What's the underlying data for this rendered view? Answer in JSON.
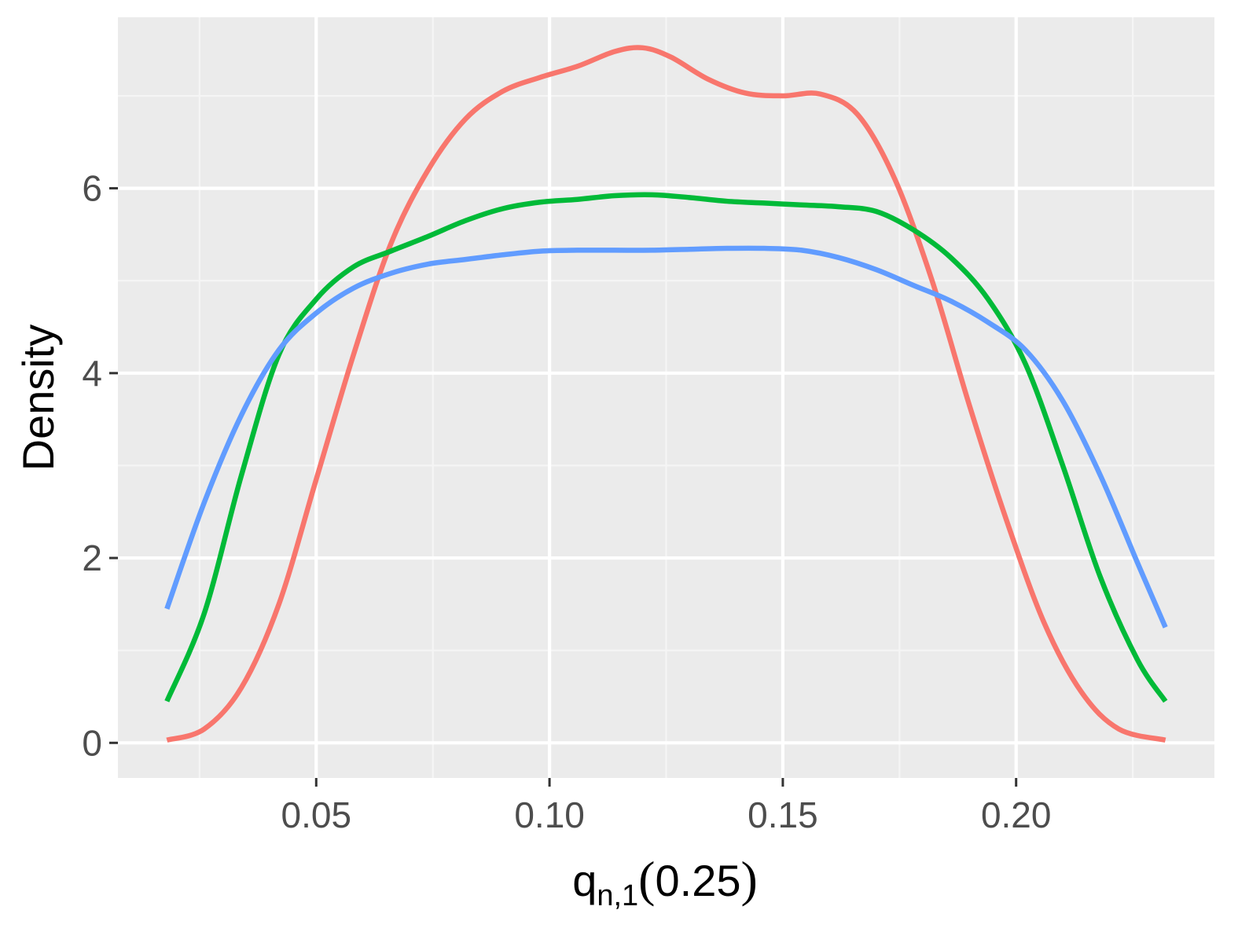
{
  "chart_data": {
    "type": "line",
    "title": "",
    "xlabel": {
      "main": "q",
      "subscript": "n,1",
      "paren_open": "(",
      "arg": "0.25",
      "paren_close": ")"
    },
    "ylabel": "Density",
    "xlim": [
      0.0075,
      0.2425
    ],
    "ylim": [
      -0.38,
      7.85
    ],
    "x_ticks": [
      0.05,
      0.1,
      0.15,
      0.2
    ],
    "x_tick_labels": [
      "0.05",
      "0.10",
      "0.15",
      "0.20"
    ],
    "y_ticks": [
      0,
      2,
      4,
      6
    ],
    "y_tick_labels": [
      "0",
      "2",
      "4",
      "6"
    ],
    "grid": true,
    "legend": "none",
    "series": [
      {
        "color": "#F8766D",
        "points": [
          [
            0.018,
            0.03
          ],
          [
            0.026,
            0.15
          ],
          [
            0.034,
            0.6
          ],
          [
            0.042,
            1.5
          ],
          [
            0.05,
            2.85
          ],
          [
            0.058,
            4.2
          ],
          [
            0.066,
            5.4
          ],
          [
            0.074,
            6.2
          ],
          [
            0.082,
            6.75
          ],
          [
            0.09,
            7.05
          ],
          [
            0.098,
            7.2
          ],
          [
            0.106,
            7.32
          ],
          [
            0.114,
            7.48
          ],
          [
            0.12,
            7.52
          ],
          [
            0.126,
            7.42
          ],
          [
            0.134,
            7.18
          ],
          [
            0.142,
            7.03
          ],
          [
            0.15,
            7.0
          ],
          [
            0.158,
            7.02
          ],
          [
            0.166,
            6.8
          ],
          [
            0.174,
            6.1
          ],
          [
            0.182,
            5.0
          ],
          [
            0.19,
            3.65
          ],
          [
            0.198,
            2.4
          ],
          [
            0.206,
            1.3
          ],
          [
            0.214,
            0.55
          ],
          [
            0.222,
            0.15
          ],
          [
            0.232,
            0.03
          ]
        ]
      },
      {
        "color": "#00BA38",
        "points": [
          [
            0.018,
            0.45
          ],
          [
            0.026,
            1.4
          ],
          [
            0.034,
            2.9
          ],
          [
            0.042,
            4.2
          ],
          [
            0.05,
            4.8
          ],
          [
            0.058,
            5.15
          ],
          [
            0.066,
            5.32
          ],
          [
            0.074,
            5.48
          ],
          [
            0.082,
            5.65
          ],
          [
            0.09,
            5.78
          ],
          [
            0.098,
            5.85
          ],
          [
            0.106,
            5.88
          ],
          [
            0.114,
            5.92
          ],
          [
            0.122,
            5.93
          ],
          [
            0.13,
            5.9
          ],
          [
            0.138,
            5.86
          ],
          [
            0.146,
            5.84
          ],
          [
            0.154,
            5.82
          ],
          [
            0.162,
            5.8
          ],
          [
            0.17,
            5.75
          ],
          [
            0.178,
            5.55
          ],
          [
            0.186,
            5.25
          ],
          [
            0.194,
            4.8
          ],
          [
            0.202,
            4.1
          ],
          [
            0.21,
            3.0
          ],
          [
            0.218,
            1.8
          ],
          [
            0.226,
            0.9
          ],
          [
            0.232,
            0.45
          ]
        ]
      },
      {
        "color": "#619CFF",
        "points": [
          [
            0.018,
            1.45
          ],
          [
            0.026,
            2.6
          ],
          [
            0.034,
            3.55
          ],
          [
            0.042,
            4.25
          ],
          [
            0.05,
            4.65
          ],
          [
            0.058,
            4.92
          ],
          [
            0.066,
            5.08
          ],
          [
            0.074,
            5.18
          ],
          [
            0.082,
            5.23
          ],
          [
            0.09,
            5.28
          ],
          [
            0.098,
            5.32
          ],
          [
            0.106,
            5.33
          ],
          [
            0.114,
            5.33
          ],
          [
            0.122,
            5.33
          ],
          [
            0.13,
            5.34
          ],
          [
            0.138,
            5.35
          ],
          [
            0.146,
            5.35
          ],
          [
            0.154,
            5.33
          ],
          [
            0.162,
            5.25
          ],
          [
            0.17,
            5.12
          ],
          [
            0.178,
            4.95
          ],
          [
            0.186,
            4.78
          ],
          [
            0.194,
            4.55
          ],
          [
            0.202,
            4.25
          ],
          [
            0.21,
            3.7
          ],
          [
            0.218,
            2.9
          ],
          [
            0.226,
            1.95
          ],
          [
            0.232,
            1.25
          ]
        ]
      }
    ],
    "colors": {
      "panel_background": "#EBEBEB",
      "grid_major": "#FFFFFF",
      "grid_minor": "#F5F5F5",
      "tick_label": "#4D4D4D",
      "axis_title": "#000000"
    }
  }
}
